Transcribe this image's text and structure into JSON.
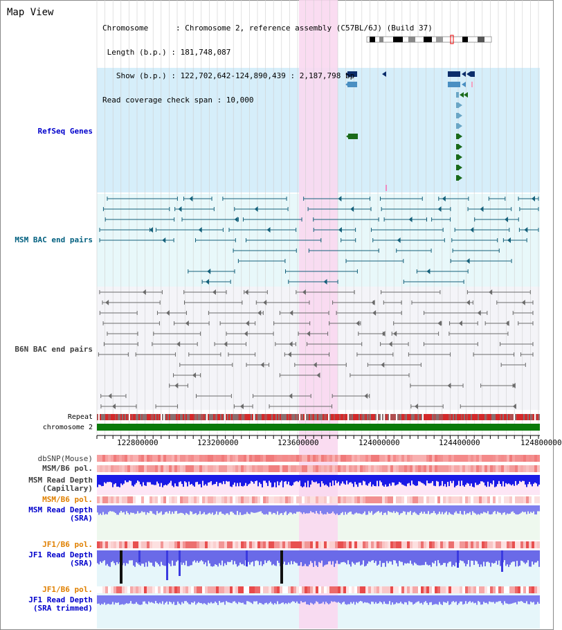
{
  "title": "Map View",
  "info": {
    "lines": [
      "Chromosome      : Chromosome 2, reference assembly (C57BL/6J) (Build 37)",
      " Length (b.p.) : 181,748,087",
      "   Show (b.p.) : 122,702,642-124,890,439 : 2,187,798 bp",
      "Read coverage check span : 10,000"
    ]
  },
  "tracks": {
    "refseq": "RefSeq Genes",
    "msm_bac": "MSM BAC end pairs",
    "b6n_bac": "B6N BAC end pairs",
    "repeat": "Repeat",
    "chromosome": "chromosome 2",
    "dbsnp": "dbSNP(Mouse)",
    "msm_b6_pol1": "MSM/B6 pol.",
    "msm_read_depth_cap_1": "MSM Read Depth",
    "msm_read_depth_cap_2": "(Capillary)",
    "msm_b6_pol2": "MSM/B6 pol.",
    "msm_read_depth_sra_1": "MSM Read Depth",
    "msm_read_depth_sra_2": "(SRA)",
    "jf1_b6_pol1": "JF1/B6 pol.",
    "jf1_read_depth_sra_1": "JF1 Read Depth",
    "jf1_read_depth_sra_2": "(SRA)",
    "jf1_b6_pol2": "JF1/B6 pol.",
    "jf1_read_depth_trim_1": "JF1 Read Depth",
    "jf1_read_depth_trim_2": "(SRA trimmed)"
  },
  "axis_ticks": [
    "122800000",
    "123200000",
    "123600000",
    "124000000",
    "124400000",
    "124800000"
  ],
  "colors": {
    "blue_label": "#0000cc",
    "teal_label": "#005f7f",
    "gray_label": "#404040",
    "orange_label": "#e08000",
    "highlight": "#f9d8f0",
    "refseq_bg": "#d6eefa",
    "msm_bg": "#e8f8fa",
    "b6n_bg": "#f4f4f8"
  }
}
